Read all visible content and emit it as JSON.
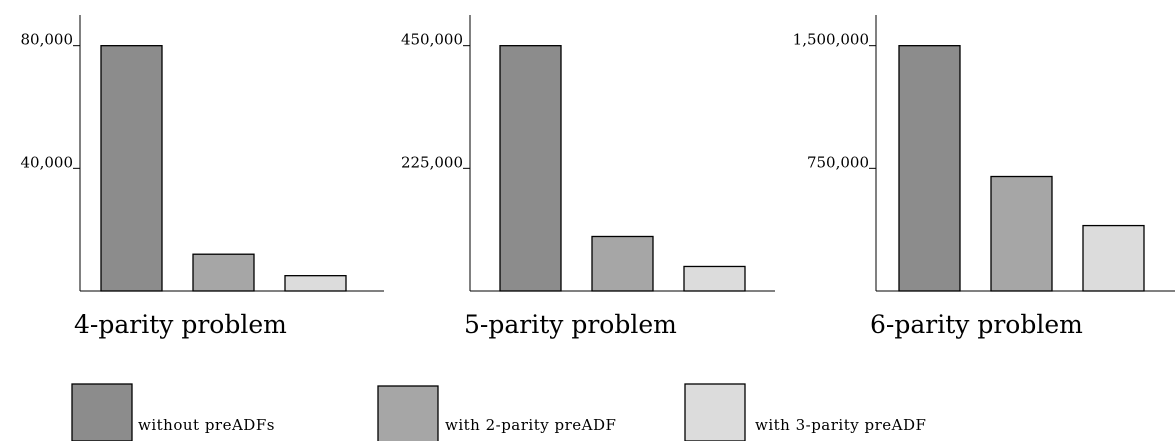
{
  "chart_data": [
    {
      "type": "bar",
      "title": "4-parity problem",
      "categories": [
        "without preADFs",
        "with 2-parity preADF",
        "with 3-parity preADF"
      ],
      "values": [
        80000,
        12000,
        5000
      ],
      "ylim": [
        0,
        90000
      ],
      "yticks": [
        {
          "value": 40000,
          "label": "40,000"
        },
        {
          "value": 80000,
          "label": "80,000"
        }
      ],
      "xlabel": "",
      "ylabel": ""
    },
    {
      "type": "bar",
      "title": "5-parity problem",
      "categories": [
        "without preADFs",
        "with 2-parity preADF",
        "with 3-parity preADF"
      ],
      "values": [
        450000,
        100000,
        45000
      ],
      "ylim": [
        0,
        506250
      ],
      "yticks": [
        {
          "value": 225000,
          "label": "225,000"
        },
        {
          "value": 450000,
          "label": "450,000"
        }
      ],
      "xlabel": "",
      "ylabel": ""
    },
    {
      "type": "bar",
      "title": "6-parity problem",
      "categories": [
        "without preADFs",
        "with 2-parity preADF",
        "with 3-parity preADF"
      ],
      "values": [
        1500000,
        700000,
        400000
      ],
      "ylim": [
        0,
        1687500
      ],
      "yticks": [
        {
          "value": 750000,
          "label": "750,000"
        },
        {
          "value": 1500000,
          "label": "1,500,000"
        }
      ],
      "xlabel": "",
      "ylabel": ""
    }
  ],
  "legend": {
    "placement": "bottom",
    "items": [
      {
        "label": "without preADFs",
        "color": "#8c8c8c"
      },
      {
        "label": "with 2-parity preADF",
        "color": "#a6a6a6"
      },
      {
        "label": "with 3-parity preADF",
        "color": "#dcdcdc"
      }
    ]
  },
  "colors": {
    "axis": "#000000",
    "bar_outline": "#000000"
  }
}
